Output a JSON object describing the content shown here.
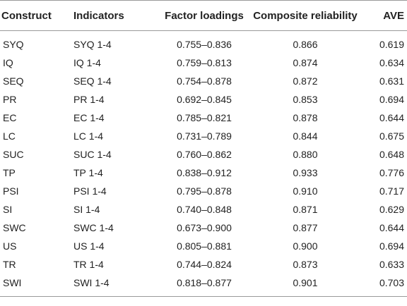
{
  "table": {
    "headers": [
      "Construct",
      "Indicators",
      "Factor loadings",
      "Composite reliability",
      "AVE"
    ],
    "rows": [
      [
        "SYQ",
        "SYQ 1-4",
        "0.755–0.836",
        "0.866",
        "0.619"
      ],
      [
        "IQ",
        "IQ 1-4",
        "0.759–0.813",
        "0.874",
        "0.634"
      ],
      [
        "SEQ",
        "SEQ 1-4",
        "0.754–0.878",
        "0.872",
        "0.631"
      ],
      [
        "PR",
        "PR 1-4",
        "0.692–0.845",
        "0.853",
        "0.694"
      ],
      [
        "EC",
        "EC 1-4",
        "0.785–0.821",
        "0.878",
        "0.644"
      ],
      [
        "LC",
        "LC 1-4",
        "0.731–0.789",
        "0.844",
        "0.675"
      ],
      [
        "SUC",
        "SUC 1-4",
        "0.760–0.862",
        "0.880",
        "0.648"
      ],
      [
        "TP",
        "TP 1-4",
        "0.838–0.912",
        "0.933",
        "0.776"
      ],
      [
        "PSI",
        "PSI 1-4",
        "0.795–0.878",
        "0.910",
        "0.717"
      ],
      [
        "SI",
        "SI 1-4",
        "0.740–0.848",
        "0.871",
        "0.629"
      ],
      [
        "SWC",
        "SWC 1-4",
        "0.673–0.900",
        "0.877",
        "0.644"
      ],
      [
        "US",
        "US 1-4",
        "0.805–0.881",
        "0.900",
        "0.694"
      ],
      [
        "TR",
        "TR 1-4",
        "0.744–0.824",
        "0.873",
        "0.633"
      ],
      [
        "SWI",
        "SWI 1-4",
        "0.818–0.877",
        "0.901",
        "0.703"
      ]
    ]
  }
}
